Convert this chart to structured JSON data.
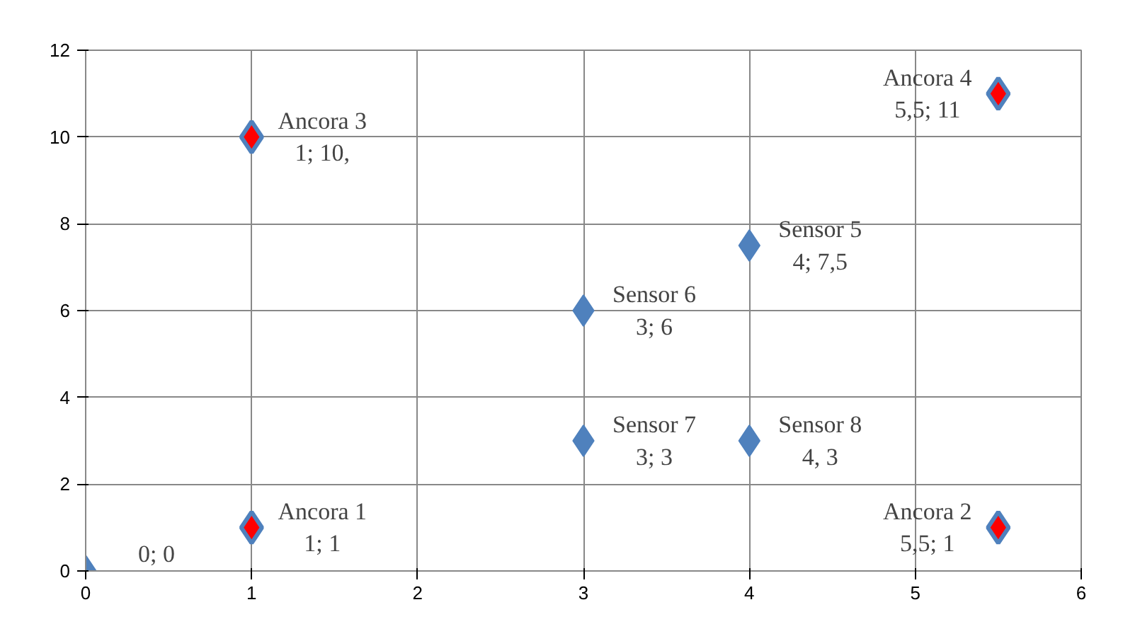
{
  "chart_data": {
    "type": "scatter",
    "marker": "diamond",
    "grid": true,
    "xlim": [
      0,
      6
    ],
    "ylim": [
      0,
      12
    ],
    "xticks": [
      0,
      1,
      2,
      3,
      4,
      5,
      6
    ],
    "yticks": [
      0,
      2,
      4,
      6,
      8,
      10,
      12
    ],
    "series": [
      {
        "color": "#4f81bd",
        "x": [
          0,
          4,
          3,
          3,
          4
        ],
        "values": [
          0,
          7.5,
          6,
          3,
          3
        ],
        "value_labels": [
          "0; 0",
          "Sensor 5\n4; 7,5",
          "Sensor 6\n3; 6",
          "Sensor 7\n3; 3",
          "Sensor 8\n4, 3"
        ]
      },
      {
        "color": "#ff0000",
        "x": [
          1,
          5.5,
          1,
          5.5
        ],
        "values": [
          1,
          1,
          10,
          11
        ],
        "value_labels": [
          "Ancora 1\n1; 1",
          "Ancora 2\n5,5; 1",
          "Ancora 3\n1; 10,",
          "Ancora 4\n5,5; 11"
        ]
      }
    ]
  }
}
